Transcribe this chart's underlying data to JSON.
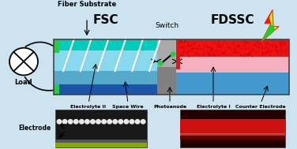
{
  "bg_color": "#cde4f0",
  "fsc_label": "FSC",
  "fdssc_label": "FDSSC",
  "switch_label": "Switch",
  "fiber_substrate_label": "Fiber Substrate",
  "load_label": "Load",
  "electrode_label": "Electrode",
  "bottom_labels": [
    "Electrolyte II",
    "Space Wire",
    "Photoanode",
    "Electrolyte I",
    "Counter Electrode"
  ],
  "cyan_top": "#00ccbb",
  "light_blue": "#88d8ee",
  "mid_blue": "#55aacc",
  "dark_blue": "#2266bb",
  "green": "#22cc44",
  "red": "#ee1111",
  "pink": "#f5b0c0",
  "blue_fdssc": "#4499cc",
  "gray_sw": "#888888",
  "border": "#444444"
}
